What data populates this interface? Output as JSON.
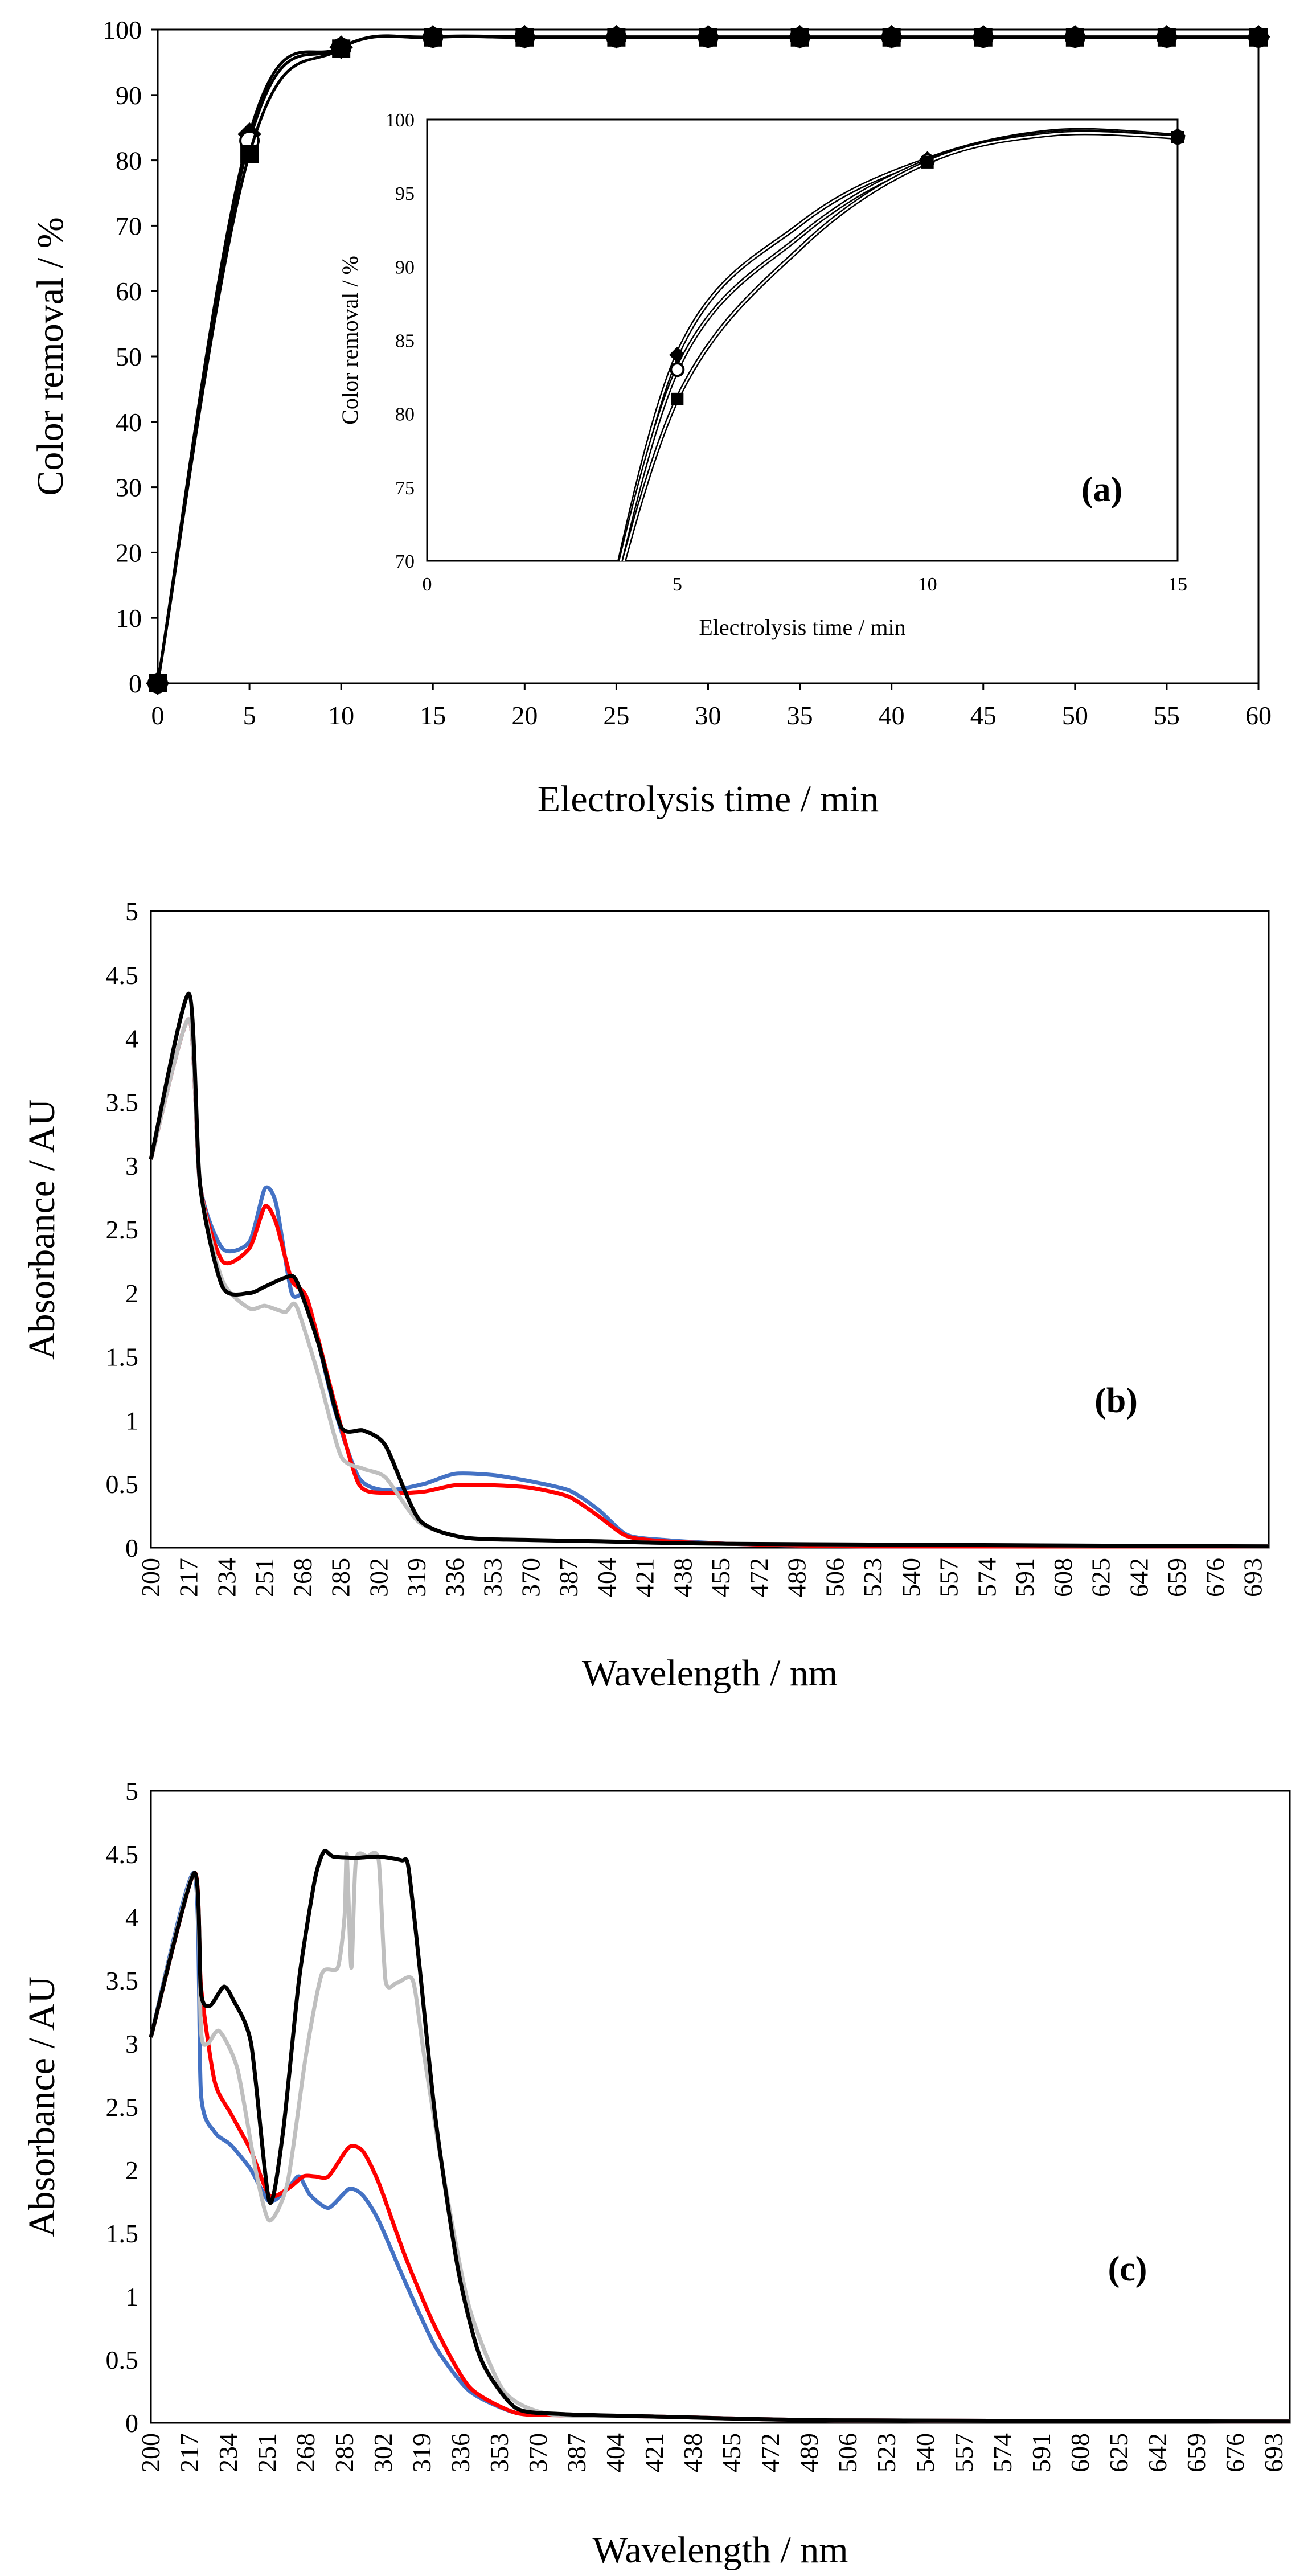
{
  "chart_data": [
    {
      "panel": "a",
      "type": "line",
      "panel_label": "(a)",
      "xlabel": "Electrolysis time / min",
      "ylabel": "Color removal / %",
      "xlim": [
        0,
        60
      ],
      "ylim": [
        0,
        100
      ],
      "xticks": [
        0,
        5,
        10,
        15,
        20,
        25,
        30,
        35,
        40,
        45,
        50,
        55,
        60
      ],
      "yticks": [
        0,
        10,
        20,
        30,
        40,
        50,
        60,
        70,
        80,
        90,
        100
      ],
      "grid": false,
      "x": [
        0,
        5,
        10,
        15,
        20,
        25,
        30,
        35,
        40,
        45,
        50,
        55,
        60
      ],
      "series": [
        {
          "name": "diamond",
          "marker": "diamond",
          "values": [
            0,
            84,
            97.3,
            98.9,
            98.9,
            98.9,
            98.9,
            98.9,
            98.9,
            98.9,
            98.9,
            98.9,
            98.9
          ]
        },
        {
          "name": "circle",
          "marker": "circle",
          "values": [
            0,
            83,
            97.2,
            98.8,
            98.8,
            98.8,
            98.8,
            98.8,
            98.8,
            98.8,
            98.8,
            98.8,
            98.8
          ]
        },
        {
          "name": "square",
          "marker": "square",
          "values": [
            0,
            81,
            97.1,
            98.8,
            98.8,
            98.8,
            98.8,
            98.8,
            98.8,
            98.8,
            98.8,
            98.8,
            98.8
          ]
        }
      ],
      "inset": {
        "xlabel": "Electrolysis time / min",
        "ylabel": "Color removal / %",
        "xlim": [
          0,
          15
        ],
        "ylim": [
          70,
          100
        ],
        "xticks": [
          0,
          5,
          10,
          15
        ],
        "yticks": [
          70,
          75,
          80,
          85,
          90,
          95,
          100
        ]
      }
    },
    {
      "panel": "b",
      "type": "line",
      "panel_label": "(b)",
      "xlabel": "Wavelength / nm",
      "ylabel": "Absorbance / AU",
      "xlim": [
        200,
        700
      ],
      "ylim": [
        0,
        5
      ],
      "xticks": [
        200,
        217,
        234,
        251,
        268,
        285,
        302,
        319,
        336,
        353,
        370,
        387,
        404,
        421,
        438,
        455,
        472,
        489,
        506,
        523,
        540,
        557,
        574,
        591,
        608,
        625,
        642,
        659,
        676,
        693
      ],
      "yticks": [
        0,
        0.5,
        1,
        1.5,
        2,
        2.5,
        3,
        3.5,
        4,
        4.5,
        5
      ],
      "ytick_labels": [
        "0",
        "0.5",
        "1",
        "1.5",
        "2",
        "2.5",
        "3",
        "3.5",
        "4",
        "4.5",
        "5"
      ],
      "grid": false,
      "series": [
        {
          "name": "blue",
          "color": "#4472c4",
          "x": [
            200,
            217,
            222,
            232,
            244,
            251,
            256,
            263,
            270,
            282,
            293,
            305,
            322,
            336,
            353,
            370,
            387,
            400,
            413,
            430,
            460,
            520,
            700
          ],
          "values": [
            3.05,
            4.15,
            2.85,
            2.35,
            2.4,
            2.82,
            2.7,
            2.0,
            1.95,
            1.1,
            0.55,
            0.45,
            0.5,
            0.58,
            0.57,
            0.52,
            0.45,
            0.3,
            0.1,
            0.06,
            0.03,
            0.01,
            0.01
          ]
        },
        {
          "name": "red",
          "color": "#ff0000",
          "x": [
            200,
            217,
            222,
            232,
            244,
            251,
            256,
            263,
            270,
            282,
            293,
            305,
            322,
            336,
            353,
            370,
            387,
            400,
            413,
            430,
            460,
            520,
            700
          ],
          "values": [
            3.05,
            4.15,
            2.85,
            2.25,
            2.35,
            2.68,
            2.55,
            2.1,
            1.95,
            1.15,
            0.5,
            0.43,
            0.44,
            0.49,
            0.49,
            0.47,
            0.4,
            0.25,
            0.09,
            0.05,
            0.03,
            0.01,
            0.01
          ]
        },
        {
          "name": "gray",
          "color": "#bfbfbf",
          "x": [
            200,
            217,
            222,
            232,
            244,
            251,
            260,
            265,
            275,
            285,
            295,
            305,
            320,
            340,
            370,
            400,
            460,
            700
          ],
          "values": [
            3.05,
            4.15,
            2.85,
            2.1,
            1.88,
            1.9,
            1.85,
            1.9,
            1.35,
            0.72,
            0.62,
            0.55,
            0.2,
            0.08,
            0.06,
            0.05,
            0.03,
            0.01
          ]
        },
        {
          "name": "black",
          "color": "#000000",
          "x": [
            200,
            217,
            222,
            232,
            244,
            251,
            260,
            265,
            275,
            285,
            295,
            305,
            320,
            340,
            370,
            400,
            460,
            700
          ],
          "values": [
            3.05,
            4.35,
            2.85,
            2.05,
            2.0,
            2.05,
            2.12,
            2.1,
            1.6,
            0.95,
            0.92,
            0.8,
            0.22,
            0.08,
            0.06,
            0.05,
            0.03,
            0.01
          ]
        }
      ]
    },
    {
      "panel": "c",
      "type": "line",
      "panel_label": "(c)",
      "xlabel": "Wavelength / nm",
      "ylabel": "Absorbance / AU",
      "xlim": [
        200,
        700
      ],
      "ylim": [
        0,
        5
      ],
      "xticks": [
        200,
        217,
        234,
        251,
        268,
        285,
        302,
        319,
        336,
        353,
        370,
        387,
        404,
        421,
        438,
        455,
        472,
        489,
        506,
        523,
        540,
        557,
        574,
        591,
        608,
        625,
        642,
        659,
        676,
        693
      ],
      "yticks": [
        0,
        0.5,
        1,
        1.5,
        2,
        2.5,
        3,
        3.5,
        4,
        4.5,
        5
      ],
      "ytick_labels": [
        "0",
        "0.5",
        "1",
        "1.5",
        "2",
        "2.5",
        "3",
        "3.5",
        "4",
        "4.5",
        "5"
      ],
      "grid": false,
      "series": [
        {
          "name": "blue",
          "color": "#4472c4",
          "x": [
            200,
            219,
            222,
            228,
            235,
            244,
            252,
            260,
            265,
            270,
            278,
            287,
            293,
            300,
            312,
            325,
            340,
            360,
            380,
            420,
            500,
            700
          ],
          "values": [
            3.05,
            4.35,
            2.6,
            2.3,
            2.2,
            2.0,
            1.75,
            1.85,
            1.95,
            1.8,
            1.7,
            1.85,
            1.8,
            1.6,
            1.1,
            0.6,
            0.25,
            0.08,
            0.06,
            0.05,
            0.02,
            0.01
          ]
        },
        {
          "name": "red",
          "color": "#ff0000",
          "x": [
            200,
            219,
            222,
            228,
            235,
            244,
            252,
            260,
            267,
            272,
            278,
            287,
            293,
            300,
            312,
            325,
            340,
            360,
            380,
            420,
            500,
            700
          ],
          "values": [
            3.05,
            4.35,
            3.45,
            2.7,
            2.45,
            2.15,
            1.8,
            1.85,
            1.95,
            1.95,
            1.95,
            2.18,
            2.15,
            1.9,
            1.3,
            0.75,
            0.28,
            0.08,
            0.06,
            0.05,
            0.02,
            0.01
          ]
        },
        {
          "name": "gray",
          "color": "#bfbfbf",
          "x": [
            200,
            219,
            222,
            225,
            230,
            238,
            246,
            252,
            260,
            268,
            275,
            282,
            285,
            286,
            288,
            290,
            295,
            300,
            303,
            308,
            315,
            320,
            330,
            340,
            355,
            375,
            420,
            500,
            700
          ],
          "values": [
            3.05,
            4.35,
            3.1,
            3.0,
            3.1,
            2.8,
            2.0,
            1.6,
            1.9,
            2.9,
            3.55,
            3.6,
            4.0,
            4.5,
            3.6,
            4.45,
            4.48,
            4.45,
            3.5,
            3.48,
            3.5,
            2.9,
            1.8,
            0.9,
            0.25,
            0.07,
            0.05,
            0.02,
            0.01
          ]
        },
        {
          "name": "black",
          "color": "#000000",
          "x": [
            200,
            219,
            222,
            226,
            232,
            236,
            244,
            252,
            258,
            265,
            272,
            276,
            280,
            290,
            300,
            310,
            313,
            318,
            325,
            335,
            345,
            360,
            380,
            420,
            500,
            700
          ],
          "values": [
            3.05,
            4.35,
            3.4,
            3.3,
            3.45,
            3.35,
            3.0,
            1.75,
            2.3,
            3.5,
            4.3,
            4.52,
            4.48,
            4.47,
            4.48,
            4.45,
            4.4,
            3.6,
            2.4,
            1.2,
            0.5,
            0.12,
            0.07,
            0.05,
            0.02,
            0.01
          ]
        }
      ]
    }
  ]
}
